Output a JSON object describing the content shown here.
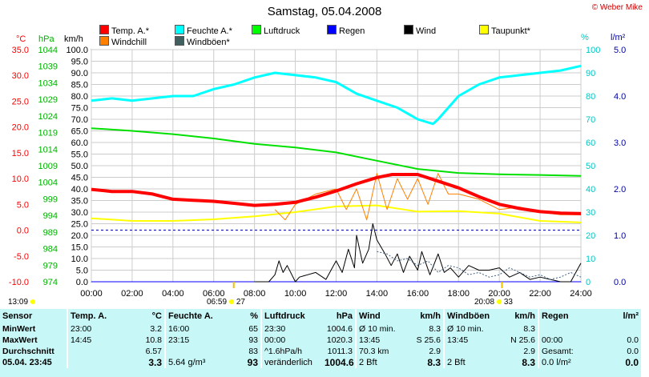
{
  "page": {
    "title": "Samstag, 05.04.2008",
    "copyright": "© Weber Mike"
  },
  "legend": [
    {
      "label": "Temp. A.*",
      "color": "#ff0000"
    },
    {
      "label": "Feuchte A.*",
      "color": "#00ffff"
    },
    {
      "label": "Luftdruck",
      "color": "#00ff00"
    },
    {
      "label": "Regen",
      "color": "#0000ff"
    },
    {
      "label": "Wind",
      "color": "#000000"
    },
    {
      "label": "Taupunkt*",
      "color": "#ffff00"
    },
    {
      "label": "Windchill",
      "color": "#ff8000"
    },
    {
      "label": "Windböen*",
      "color": "#406060"
    }
  ],
  "axes": {
    "temp_unit": "°C",
    "press_unit": "hPa",
    "wind_unit": "km/h",
    "hum_unit": "%",
    "rain_unit": "l/m²"
  },
  "chart_data": {
    "type": "line",
    "title": "Samstag, 05.04.2008",
    "x_range": [
      "00:00",
      "24:00"
    ],
    "x_ticks": [
      "00:00",
      "02:00",
      "04:00",
      "06:00",
      "08:00",
      "10:00",
      "12:00",
      "14:00",
      "16:00",
      "18:00",
      "20:00",
      "22:00",
      "24:00"
    ],
    "temp_ticks": [
      "35.0",
      "30.0",
      "25.0",
      "20.0",
      "15.0",
      "10.0",
      "5.0",
      "0.0",
      "-5.0",
      "-10.0"
    ],
    "press_ticks": [
      "1044",
      "1039",
      "1034",
      "1029",
      "1024",
      "1019",
      "1014",
      "1009",
      "1004",
      "999",
      "994",
      "989",
      "984",
      "979",
      "974"
    ],
    "wind_ticks": [
      "100.0",
      "95.0",
      "90.0",
      "85.0",
      "80.0",
      "75.0",
      "70.0",
      "65.0",
      "60.0",
      "55.0",
      "50.0",
      "45.0",
      "40.0",
      "35.0",
      "30.0",
      "25.0",
      "20.0",
      "15.0",
      "10.0",
      "5.0",
      "0.0"
    ],
    "hum_ticks": [
      "100",
      "90",
      "80",
      "70",
      "60",
      "50",
      "40",
      "30",
      "20",
      "10",
      "0"
    ],
    "rain_ticks": [
      "5.0",
      "4.0",
      "3.0",
      "2.0",
      "1.0",
      "0.0"
    ],
    "ylim_temp": [
      -10,
      35
    ],
    "ylim_pressure": [
      974,
      1044
    ],
    "ylim_wind": [
      0,
      100
    ],
    "ylim_humidity": [
      0,
      100
    ],
    "ylim_rain": [
      0,
      5
    ],
    "series": [
      {
        "name": "Temp. A.*",
        "axis": "temp",
        "x_hours": [
          0,
          1,
          2,
          3,
          4,
          5,
          6,
          7,
          8,
          9,
          10,
          11,
          12,
          13,
          14,
          14.75,
          15,
          16,
          17,
          18,
          19,
          20,
          21,
          22,
          23,
          24
        ],
        "values": [
          7.9,
          7.5,
          7.5,
          7.0,
          6.0,
          5.8,
          5.6,
          5.2,
          4.8,
          5.0,
          5.4,
          6.4,
          7.6,
          9.0,
          10.2,
          10.8,
          10.8,
          10.8,
          9.5,
          8.2,
          6.5,
          5.0,
          4.2,
          3.6,
          3.3,
          3.2
        ]
      },
      {
        "name": "Feuchte A.*",
        "axis": "humidity",
        "x_hours": [
          0,
          1,
          2,
          3,
          4,
          5,
          6,
          7,
          8,
          9,
          10,
          11,
          12,
          13,
          14,
          15,
          16,
          16.75,
          17,
          18,
          19,
          20,
          21,
          22,
          23,
          24
        ],
        "values": [
          78,
          79,
          78,
          79,
          80,
          80,
          83,
          85,
          88,
          90,
          89,
          88,
          86,
          81,
          78,
          75,
          70,
          68,
          70,
          80,
          85,
          88,
          89,
          90,
          91,
          93
        ]
      },
      {
        "name": "Luftdruck",
        "axis": "pressure",
        "x_hours": [
          0,
          2,
          4,
          6,
          8,
          10,
          12,
          14,
          16,
          18,
          20,
          22,
          24
        ],
        "values": [
          1020.3,
          1019.5,
          1018.5,
          1017.2,
          1015.6,
          1014.5,
          1013.0,
          1010.5,
          1008.0,
          1006.8,
          1006.4,
          1006.2,
          1005.9
        ]
      },
      {
        "name": "Taupunkt*",
        "axis": "temp",
        "x_hours": [
          0,
          2,
          4,
          6,
          8,
          10,
          12,
          14,
          16,
          18,
          20,
          22,
          24
        ],
        "values": [
          2.3,
          1.8,
          1.8,
          2.1,
          2.7,
          3.5,
          4.6,
          4.8,
          3.6,
          3.7,
          3.2,
          1.8,
          1.5
        ]
      },
      {
        "name": "Windchill",
        "axis": "temp",
        "x_hours": [
          9,
          9.5,
          10,
          11,
          12,
          12.5,
          13,
          13.5,
          14,
          14.5,
          15,
          15.5,
          16,
          16.5,
          17,
          17.5,
          18,
          19,
          20,
          21,
          22,
          23,
          24
        ],
        "values": [
          4.0,
          2.0,
          5.0,
          7.0,
          8.0,
          4.0,
          8.0,
          2.0,
          11.0,
          4.0,
          10.0,
          6.0,
          10.0,
          5.0,
          11.0,
          7.0,
          7.0,
          6.0,
          4.0,
          4.5,
          3.5,
          3.0,
          3.0
        ]
      },
      {
        "name": "Wind",
        "axis": "wind",
        "x_hours": [
          8,
          8.7,
          9,
          9.2,
          9.4,
          9.6,
          10,
          10.2,
          11,
          11.5,
          12,
          12.3,
          12.6,
          12.9,
          13,
          13.3,
          13.6,
          13.8,
          14,
          14.4,
          14.7,
          15,
          15.3,
          15.6,
          16,
          16.2,
          16.6,
          17,
          17.3,
          17.6,
          18,
          18.5,
          19,
          19.5,
          20,
          20.5,
          21,
          21.5,
          22,
          22.5,
          23,
          23.5,
          24
        ],
        "values": [
          0,
          0,
          3,
          9,
          4,
          7,
          0,
          2,
          4,
          1,
          9,
          4,
          14,
          6,
          20,
          8,
          14,
          25,
          18,
          12,
          7,
          12,
          4,
          11,
          5,
          13,
          3,
          12,
          4,
          6,
          2,
          7,
          5,
          5,
          6,
          2,
          4,
          1,
          2,
          1,
          0,
          0,
          8
        ]
      },
      {
        "name": "Windböen*",
        "axis": "wind",
        "x_hours": [
          14,
          14.5,
          15,
          15.5,
          16,
          16.5,
          17,
          17.5,
          18,
          18.5,
          19,
          19.5,
          20,
          20.5,
          21,
          21.5,
          22,
          22.5,
          23,
          23.5,
          24
        ],
        "values": [
          13,
          12,
          9,
          10,
          7,
          9,
          4,
          7,
          6,
          3,
          4,
          2,
          3,
          6,
          4,
          2,
          3,
          1,
          2,
          4,
          2
        ]
      },
      {
        "name": "Regen",
        "axis": "rain",
        "x_hours": [
          0,
          24
        ],
        "values": [
          0,
          0
        ]
      }
    ],
    "grid": true,
    "legend_position": "top"
  },
  "events": {
    "sunrise_label": "06:59",
    "sunrise_extra": "27",
    "sunset_label": "20:08",
    "sunset_extra": "33",
    "left_time": "13:09"
  },
  "stats": {
    "head": [
      "Sensor",
      "Temp. A.",
      "°C",
      "Feuchte A.",
      "%",
      "Luftdruck",
      "hPa",
      "Wind",
      "km/h",
      "Windböen",
      "km/h",
      "Regen",
      "l/m²"
    ],
    "rows": [
      [
        "MinWert",
        "23:00",
        "3.2",
        "16:00",
        "65",
        "23:30",
        "1004.6",
        "Ø 10 min.",
        "8.3",
        "Ø 10 min.",
        "8.3",
        "",
        ""
      ],
      [
        "MaxWert",
        "14:45",
        "10.8",
        "23:15",
        "93",
        "00:00",
        "1020.3",
        "13:45",
        "S 25.6",
        "13:45",
        "N 25.6",
        "00:00",
        "0.0"
      ],
      [
        "Durchschnitt",
        "",
        "6.57",
        "",
        "83",
        "^1.6hPa/h",
        "1011.3",
        "70.3 km",
        "2.9",
        "",
        "2.9",
        "Gesamt:",
        "0.0"
      ],
      [
        "05.04. 23:45",
        "",
        "3.3",
        "5.64 g/m³",
        "93",
        "veränderlich",
        "1004.6",
        "2 Bft",
        "8.3",
        "2 Bft",
        "8.3",
        "0.0 l/m²",
        "0.0"
      ]
    ]
  }
}
